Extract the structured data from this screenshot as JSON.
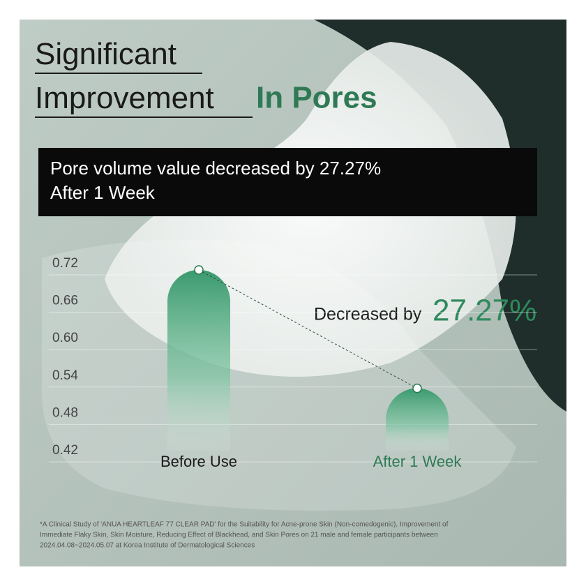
{
  "chart_data": {
    "type": "bar",
    "title": "Significant Improvement",
    "title_highlight": "In Pores",
    "subtitle": [
      "Pore volume value decreased by 27.27%",
      "After 1 Week"
    ],
    "annotation": {
      "text": "Decreased by",
      "value": "27.27%"
    },
    "categories": [
      "Before Use",
      "After 1 Week"
    ],
    "values": [
      0.71,
      0.52
    ],
    "color": "#3a9a6e",
    "ylim": [
      0.42,
      0.72
    ],
    "yticks": [
      0.72,
      0.66,
      {
        "value": 0.6,
        "label": "0.60"
      },
      0.54,
      0.48,
      0.42
    ],
    "grid": true,
    "footnote": [
      "*A Clinical Study of 'ANUA HEARTLEAF 77 CLEAR PAD' for the Suitability for Acne-prone Skin (Non-comedogenic), Improvement of",
      "Immediate Flaky Skin, Skin Moisture, Reducing Effect of Blackhead, and Skin Pores on 21 male and female participants between",
      "2024.04.08~2024.05.07 at Korea Institute of Dermatological Sciences"
    ]
  }
}
